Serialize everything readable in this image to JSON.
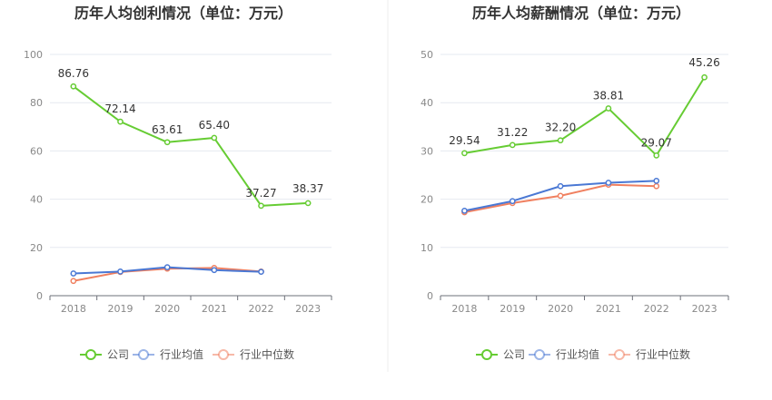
{
  "chart_data": [
    {
      "type": "line",
      "title": "历年人均创利情况（单位：万元）",
      "categories": [
        "2018",
        "2019",
        "2020",
        "2021",
        "2022",
        "2023"
      ],
      "ylim": [
        0,
        100
      ],
      "yticks": [
        0,
        20,
        40,
        60,
        80,
        100
      ],
      "ytick_labels": [
        "0",
        "20",
        "40",
        "60",
        "80",
        "100"
      ],
      "grid": true,
      "legend_position": "bottom",
      "series": [
        {
          "name": "公司",
          "key": "company",
          "color": "#66cc33",
          "values": [
            86.76,
            72.14,
            63.61,
            65.4,
            37.27,
            38.37
          ],
          "labels": [
            "86.76",
            "72.14",
            "63.61",
            "65.40",
            "37.27",
            "38.37"
          ]
        },
        {
          "name": "行业均值",
          "key": "avg",
          "color": "#4a78d4",
          "values": [
            9.2,
            10.0,
            11.8,
            10.6,
            9.9,
            null
          ]
        },
        {
          "name": "行业中位数",
          "key": "median",
          "color": "#f08060",
          "values": [
            6.1,
            9.8,
            11.2,
            11.5,
            10.0,
            null
          ]
        }
      ]
    },
    {
      "type": "line",
      "title": "历年人均薪酬情况（单位：万元）",
      "categories": [
        "2018",
        "2019",
        "2020",
        "2021",
        "2022",
        "2023"
      ],
      "ylim": [
        0,
        50
      ],
      "yticks": [
        0,
        10,
        20,
        30,
        40,
        50
      ],
      "ytick_labels": [
        "0",
        "10",
        "20",
        "30",
        "40",
        "50"
      ],
      "grid": true,
      "legend_position": "bottom",
      "series": [
        {
          "name": "公司",
          "key": "company",
          "color": "#66cc33",
          "values": [
            29.54,
            31.22,
            32.2,
            38.81,
            29.07,
            45.26
          ],
          "labels": [
            "29.54",
            "31.22",
            "32.20",
            "38.81",
            "29.07",
            "45.26"
          ]
        },
        {
          "name": "行业均值",
          "key": "avg",
          "color": "#4a78d4",
          "values": [
            17.6,
            19.6,
            22.7,
            23.4,
            23.8,
            null
          ]
        },
        {
          "name": "行业中位数",
          "key": "median",
          "color": "#f08060",
          "values": [
            17.3,
            19.2,
            20.7,
            23.0,
            22.7,
            null
          ]
        }
      ]
    }
  ]
}
